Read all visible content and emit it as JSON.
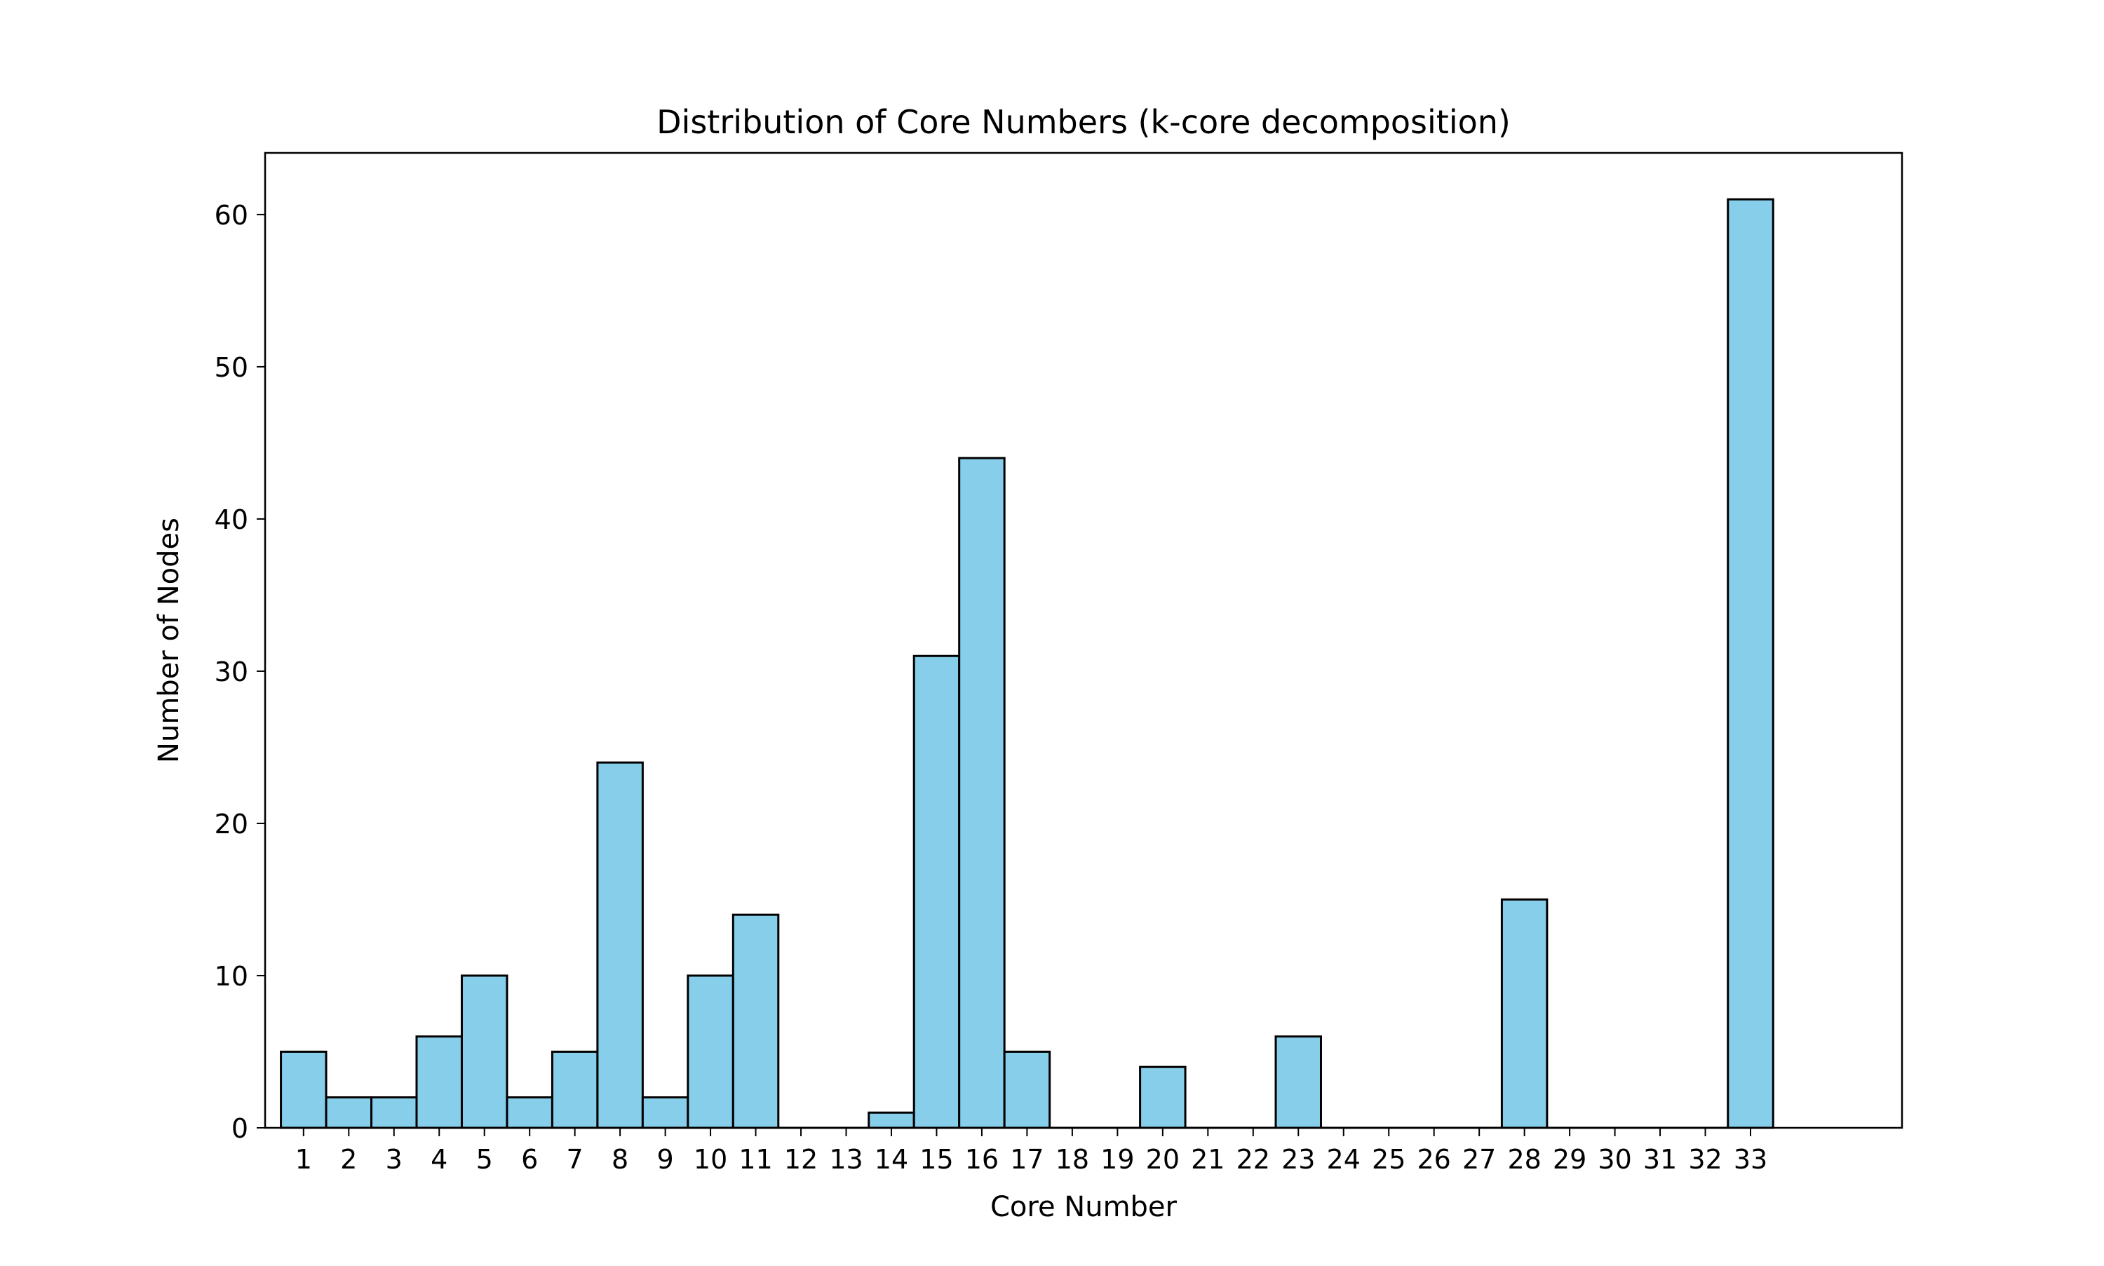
{
  "chart_data": {
    "type": "bar",
    "title": "Distribution of Core Numbers (k-core decomposition)",
    "xlabel": "Core Number",
    "ylabel": "Number of Nodes",
    "categories": [
      "1",
      "2",
      "3",
      "4",
      "5",
      "6",
      "7",
      "8",
      "9",
      "10",
      "11",
      "12",
      "13",
      "14",
      "15",
      "16",
      "17",
      "18",
      "19",
      "20",
      "21",
      "22",
      "23",
      "24",
      "25",
      "26",
      "27",
      "28",
      "29",
      "30",
      "31",
      "32",
      "33"
    ],
    "values": [
      5,
      2,
      2,
      6,
      10,
      2,
      5,
      24,
      2,
      10,
      14,
      0,
      0,
      1,
      31,
      44,
      5,
      0,
      0,
      4,
      0,
      0,
      6,
      0,
      0,
      0,
      0,
      15,
      0,
      0,
      0,
      0,
      61
    ],
    "yticks": [
      0,
      10,
      20,
      30,
      40,
      50,
      60
    ],
    "ylim": [
      0,
      64.05
    ],
    "xlim": [
      0.15,
      36.35
    ],
    "grid": false,
    "bar_color": "#87ceeb",
    "edge_color": "#000000"
  }
}
